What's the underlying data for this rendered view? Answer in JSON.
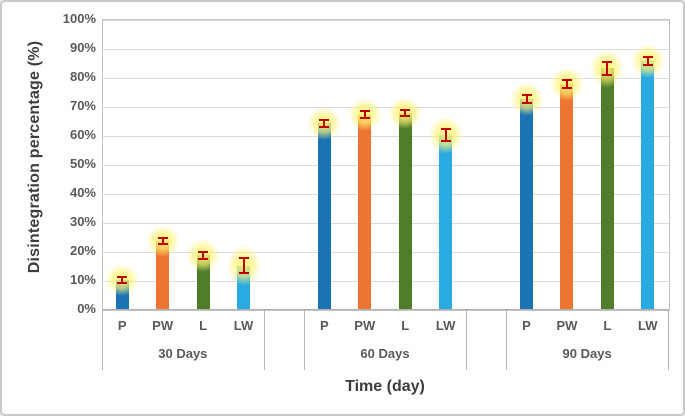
{
  "figure": {
    "y_axis_title": "Disintegration percentage (%)",
    "x_axis_title": "Time (day)"
  },
  "chart_data": {
    "type": "bar",
    "title": "",
    "xlabel": "Time (day)",
    "ylabel": "Disintegration percentage (%)",
    "categories": [
      "30 Days",
      "60 Days",
      "90 Days"
    ],
    "sub_category_labels": [
      "P",
      "PW",
      "L",
      "LW"
    ],
    "series": [
      {
        "name": "P",
        "color": "#1a73b5",
        "values": [
          10,
          64,
          72.5
        ],
        "errors": [
          1.5,
          1.5,
          1.7
        ]
      },
      {
        "name": "PW",
        "color": "#ed7531",
        "values": [
          23.5,
          67,
          77.5
        ],
        "errors": [
          1.3,
          1.5,
          1.8
        ]
      },
      {
        "name": "L",
        "color": "#4f7d2a",
        "values": [
          18.5,
          67.5,
          83
        ],
        "errors": [
          1.5,
          1.3,
          2.5
        ]
      },
      {
        "name": "LW",
        "color": "#29abe2",
        "values": [
          15,
          60,
          85.5
        ],
        "errors": [
          3,
          2.5,
          1.8
        ]
      }
    ],
    "ylim": [
      0,
      100
    ],
    "ytick_step": 10,
    "ytick_labels": [
      "100%",
      "90%",
      "80%",
      "70%",
      "60%",
      "50%",
      "40%",
      "30%",
      "20%",
      "10%",
      "0%"
    ],
    "grid": true,
    "legend_position": "none",
    "error_bar_color": "#c00000",
    "glow_highlight_color": "#fff27f",
    "gridline_color": "#dcdcdc"
  }
}
